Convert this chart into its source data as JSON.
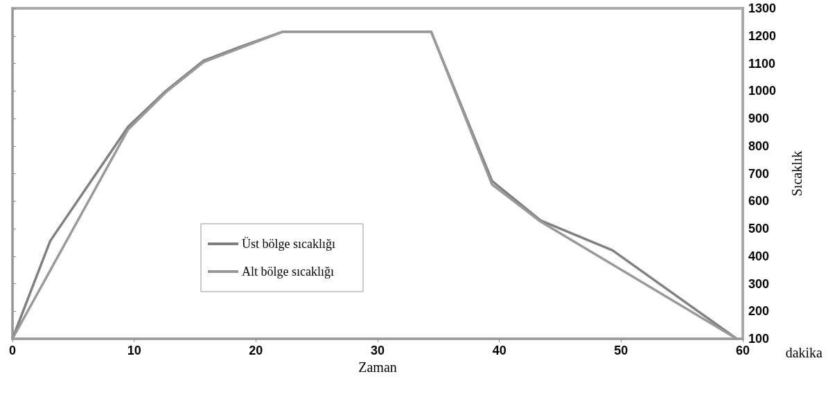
{
  "chart_data": {
    "type": "line",
    "xlabel": "Zaman",
    "ylabel": "Sıcaklık",
    "annotations": [
      "dakika"
    ],
    "xlim": [
      0,
      60
    ],
    "xticks": [
      0,
      10,
      20,
      30,
      40,
      50,
      60
    ],
    "ylim": [
      100,
      1300
    ],
    "yticks": [
      100,
      200,
      300,
      400,
      500,
      600,
      700,
      800,
      900,
      1000,
      1100,
      1200,
      1300
    ],
    "grid": false,
    "legend": "bottom",
    "marker": "none",
    "line_style": "solid",
    "series": [
      {
        "name": "Üst bölge sıcaklığı",
        "color": "#808080",
        "x": [
          0,
          3.1,
          9.5,
          12.6,
          15.7,
          18.7,
          22.2,
          34.4,
          39.4,
          43.4,
          49.3,
          59.5
        ],
        "values": [
          100,
          455,
          870,
          1000,
          1110,
          1160,
          1215,
          1215,
          673,
          529,
          421,
          100
        ]
      },
      {
        "name": "Alt bölge sıcaklığı",
        "color": "#999999",
        "x": [
          0,
          9.5,
          12.6,
          15.7,
          22.2,
          34.4,
          39.4,
          43.4,
          59.5
        ],
        "values": [
          100,
          860,
          995,
          1105,
          1215,
          1215,
          660,
          525,
          100
        ]
      }
    ]
  }
}
